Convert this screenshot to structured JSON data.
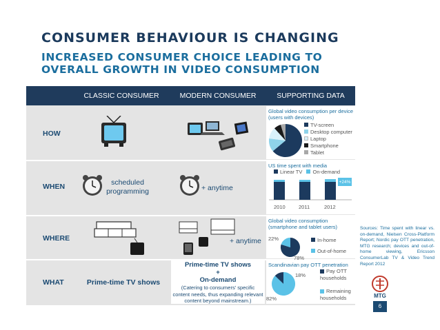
{
  "title": "CONSUMER BEHAVIOUR IS CHANGING",
  "subtitle": "INCREASED CONSUMER CHOICE LEADING TO OVERALL GROWTH IN VIDEO CONSUMPTION",
  "table": {
    "headers": [
      "CLASSIC CONSUMER",
      "MODERN CONSUMER",
      "SUPPORTING DATA"
    ],
    "rows": {
      "how": {
        "label": "HOW"
      },
      "when": {
        "label": "WHEN",
        "classic": "scheduled programming",
        "modern": "+ anytime"
      },
      "where": {
        "label": "WHERE",
        "modern": "+ anytime"
      },
      "what": {
        "label": "WHAT",
        "classic": "Prime-time TV shows",
        "modern_line1": "Prime-time TV shows",
        "modern_plus": "+",
        "modern_line2": "On-demand",
        "modern_note": "(Catering to consumers' specific content needs, thus expanding relevant content beyond mainstream.)"
      }
    }
  },
  "supporting": {
    "how_chart": {
      "title": "Global video consumption per device (users with devices)",
      "legend": [
        "TV-screen",
        "Desktop computer",
        "Laptop",
        "Smartphone",
        "Tablet"
      ],
      "colors": [
        "#1c3a5e",
        "#8fd3ea",
        "#d9f1fa",
        "#1a1a1a",
        "#a8a8a8"
      ]
    },
    "when_chart": {
      "title": "US time spent with media",
      "legend": [
        "Linear TV",
        "On-demand"
      ],
      "x": [
        "2010",
        "2011",
        "2012"
      ],
      "growth_label": "+24%",
      "colors": {
        "linear": "#1c3a5e",
        "ondemand": "#5bc2e7"
      }
    },
    "where_chart": {
      "title": "Global video consumption (smartphone and tablet users)",
      "labels": [
        "In-home",
        "Out-of-home"
      ],
      "values_pct": [
        78,
        22
      ],
      "value_labels": [
        "78%",
        "22%"
      ]
    },
    "what_chart": {
      "title": "Scandinavian pay OTT penetration",
      "labels": [
        "Pay OTT households",
        "Remaining households"
      ],
      "values_pct": [
        18,
        82
      ],
      "value_labels": [
        "18%",
        "82%"
      ]
    }
  },
  "sources": "Sources: Time spent with linear vs. on-demand, Nielsen Cross-Platform Report; Nordic pay OTT penetration, MTG research; devices and out-of-home viewing, Ericsson ConsumerLab TV & Video Trend Report 2012",
  "logo_text": "MTG",
  "page_number": "6"
}
